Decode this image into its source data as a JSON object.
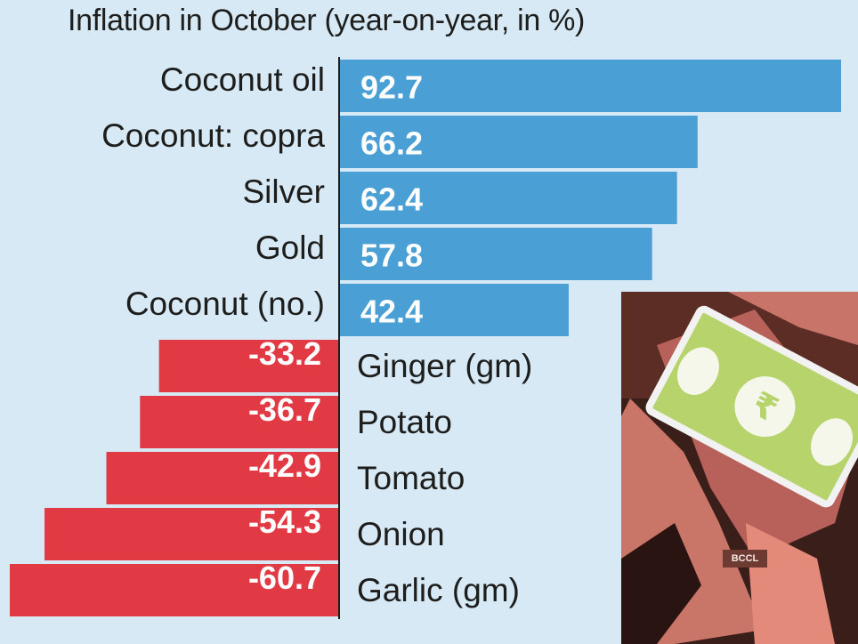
{
  "chart_data": {
    "type": "bar",
    "orientation": "horizontal",
    "title": "Inflation in October (year-on-year, in %)",
    "categories": [
      "Coconut oil",
      "Coconut: copra",
      "Silver",
      "Gold",
      "Coconut (no.)",
      "Ginger (gm)",
      "Potato",
      "Tomato",
      "Onion",
      "Garlic (gm)"
    ],
    "values": [
      92.7,
      66.2,
      62.4,
      57.8,
      42.4,
      -33.2,
      -36.7,
      -42.9,
      -54.3,
      -60.7
    ],
    "value_labels": [
      "92.7",
      "66.2",
      "62.4",
      "57.8",
      "42.4",
      "-33.2",
      "-36.7",
      "-42.9",
      "-54.3",
      "-60.7"
    ],
    "xlim": [
      -60.7,
      92.7
    ],
    "grid": false,
    "legend": "none",
    "colors": {
      "positive": "#4a9fd5",
      "negative": "#e23a45",
      "background": "#d6e9f5",
      "text": "#1d1d1b",
      "bar_text": "#ffffff",
      "axis": "#1d1d1b"
    }
  },
  "illustration": {
    "description_icon": "banknote-illustration-icon",
    "credit": "BCCL"
  }
}
